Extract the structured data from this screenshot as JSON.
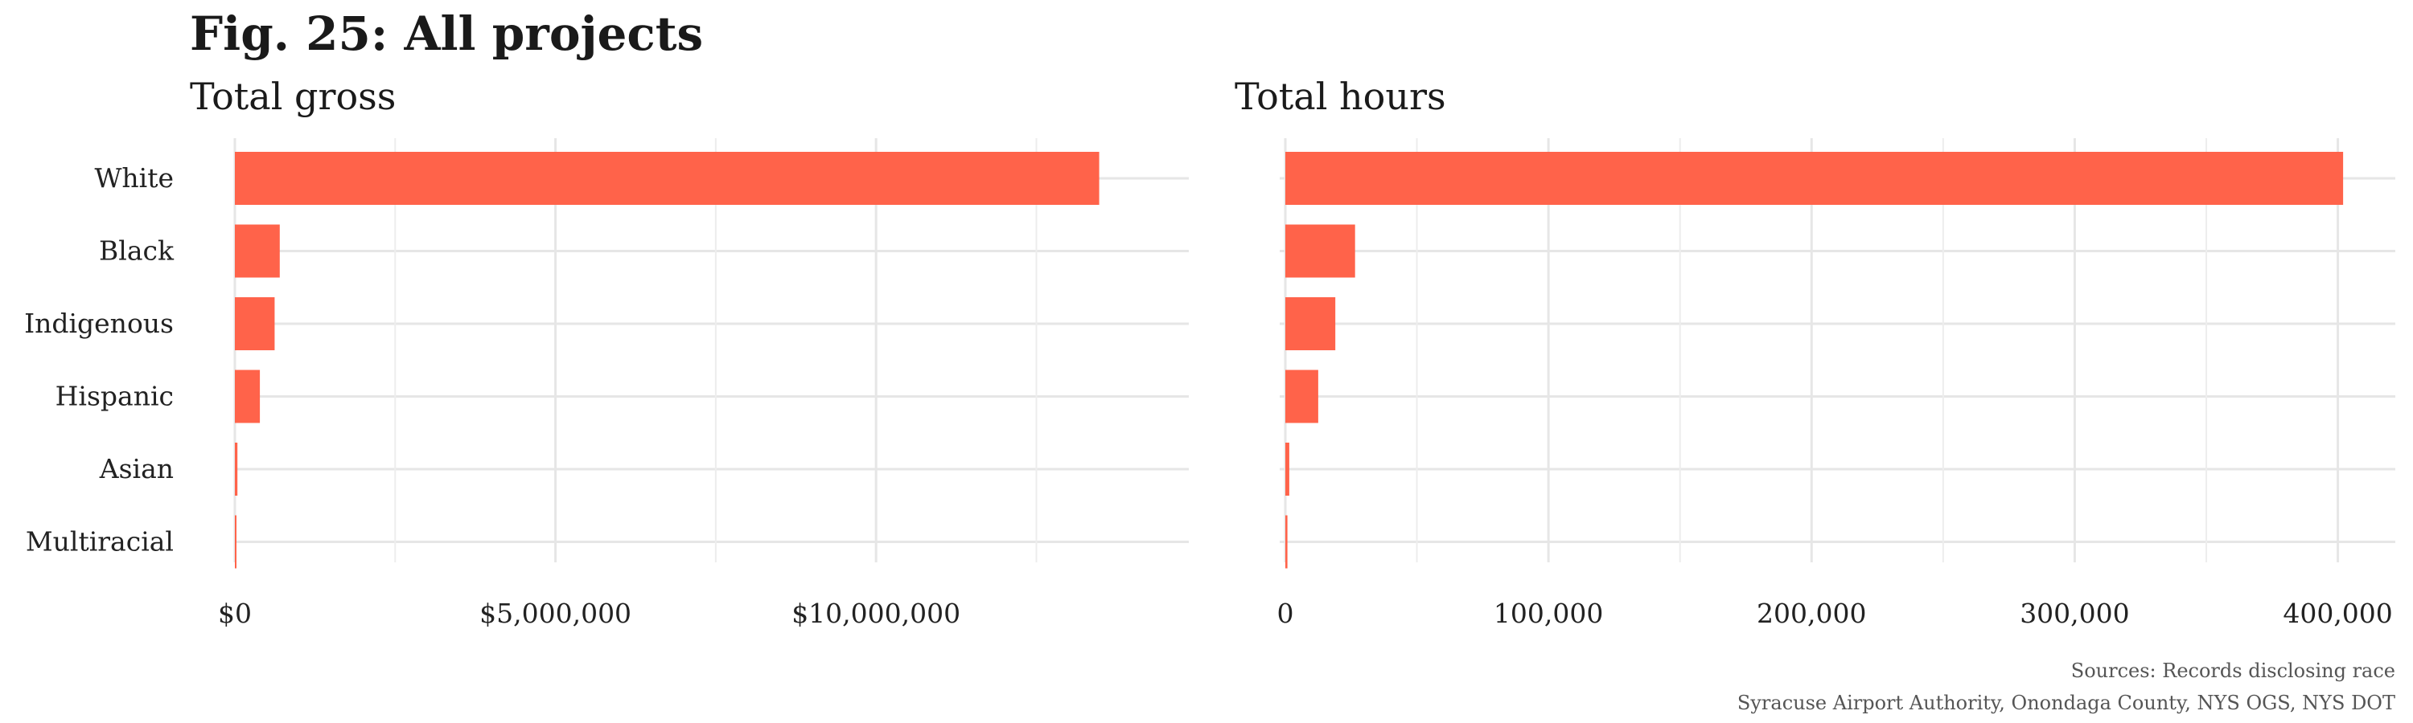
{
  "title": "Fig. 25: All projects",
  "caption": {
    "line1": "Sources: Records disclosing race",
    "line2": "Syracuse Airport Authority, Onondaga County, NYS OGS, NYS DOT"
  },
  "colors": {
    "bar": "#ff634a",
    "grid": "#e6e6e6"
  },
  "chart_data": [
    {
      "type": "bar",
      "orientation": "horizontal",
      "title": "Total gross",
      "xlabel": "",
      "ylabel": "",
      "categories": [
        "White",
        "Black",
        "Indigenous",
        "Hispanic",
        "Asian",
        "Multiracial"
      ],
      "values": [
        13480000,
        700000,
        620000,
        390000,
        40000,
        10000
      ],
      "xlim": [
        0,
        14150000
      ],
      "ticks": [
        0,
        5000000,
        10000000
      ],
      "tick_labels": [
        "$0",
        "$5,000,000",
        "$10,000,000"
      ],
      "grid": true
    },
    {
      "type": "bar",
      "orientation": "horizontal",
      "title": "Total hours",
      "xlabel": "",
      "ylabel": "",
      "categories": [
        "White",
        "Black",
        "Indigenous",
        "Hispanic",
        "Asian",
        "Multiracial"
      ],
      "values": [
        402000,
        26500,
        19000,
        12500,
        1500,
        800
      ],
      "xlim": [
        0,
        420000
      ],
      "ticks": [
        0,
        100000,
        200000,
        300000,
        400000
      ],
      "tick_labels": [
        "0",
        "100,000",
        "200,000",
        "300,000",
        "400,000"
      ],
      "grid": true
    }
  ]
}
